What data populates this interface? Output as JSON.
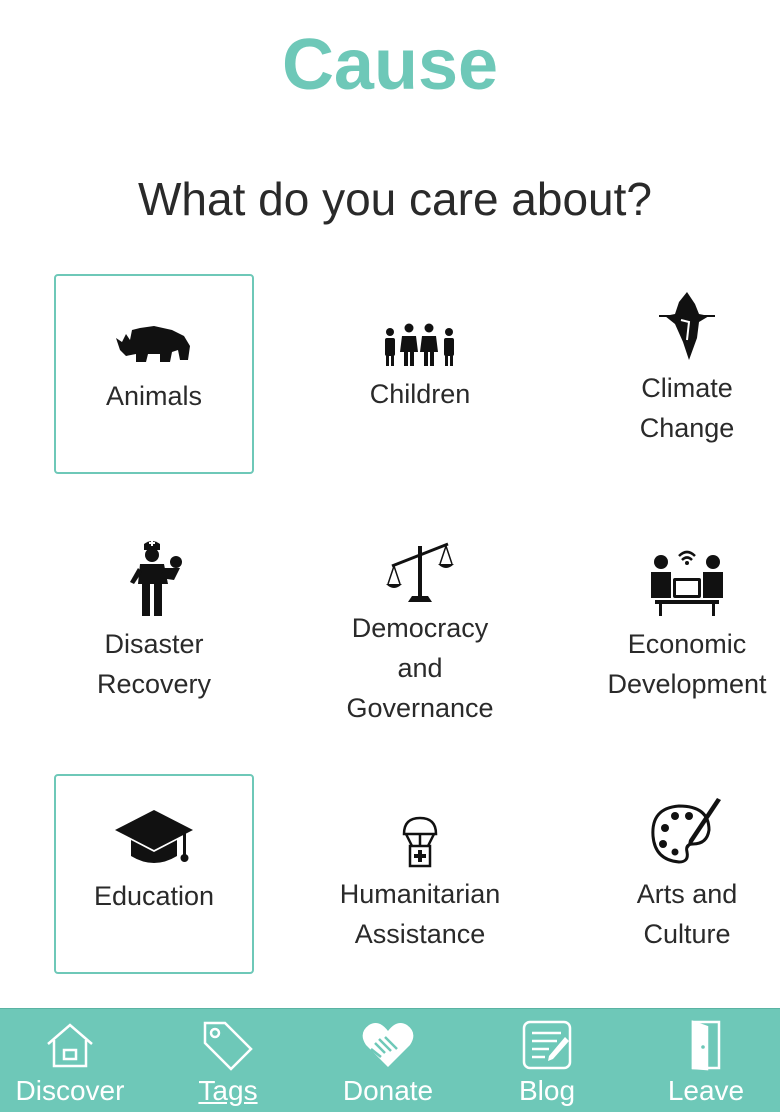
{
  "header": {
    "brand": "Cause",
    "question": "What do you care about?"
  },
  "causes": [
    {
      "label_lines": [
        "Animals"
      ],
      "icon": "rhino-icon",
      "selected": true
    },
    {
      "label_lines": [
        "Children"
      ],
      "icon": "children-icon",
      "selected": false
    },
    {
      "label_lines": [
        "Climate",
        "Change"
      ],
      "icon": "iceberg-icon",
      "selected": false
    },
    {
      "label_lines": [
        "Disaster",
        "Recovery"
      ],
      "icon": "rescuer-icon",
      "selected": false
    },
    {
      "label_lines": [
        "Democracy",
        "and",
        "Governance"
      ],
      "icon": "scales-icon",
      "selected": false
    },
    {
      "label_lines": [
        "Economic",
        "Development"
      ],
      "icon": "meeting-icon",
      "selected": false
    },
    {
      "label_lines": [
        "Education"
      ],
      "icon": "graduation-cap-icon",
      "selected": true
    },
    {
      "label_lines": [
        "Humanitarian",
        "Assistance"
      ],
      "icon": "aid-parachute-icon",
      "selected": false
    },
    {
      "label_lines": [
        "Arts and",
        "Culture"
      ],
      "icon": "palette-icon",
      "selected": false
    }
  ],
  "nav": {
    "items": [
      {
        "label": "Discover",
        "icon": "home-icon",
        "active": false
      },
      {
        "label": "Tags",
        "icon": "tag-icon",
        "active": true
      },
      {
        "label": "Donate",
        "icon": "heart-handshake-icon",
        "active": false
      },
      {
        "label": "Blog",
        "icon": "blog-icon",
        "active": false
      },
      {
        "label": "Leave",
        "icon": "door-icon",
        "active": false
      }
    ]
  },
  "colors": {
    "accent": "#6ec8b8",
    "text": "#2a2a2a",
    "nav_text": "#ffffff"
  }
}
